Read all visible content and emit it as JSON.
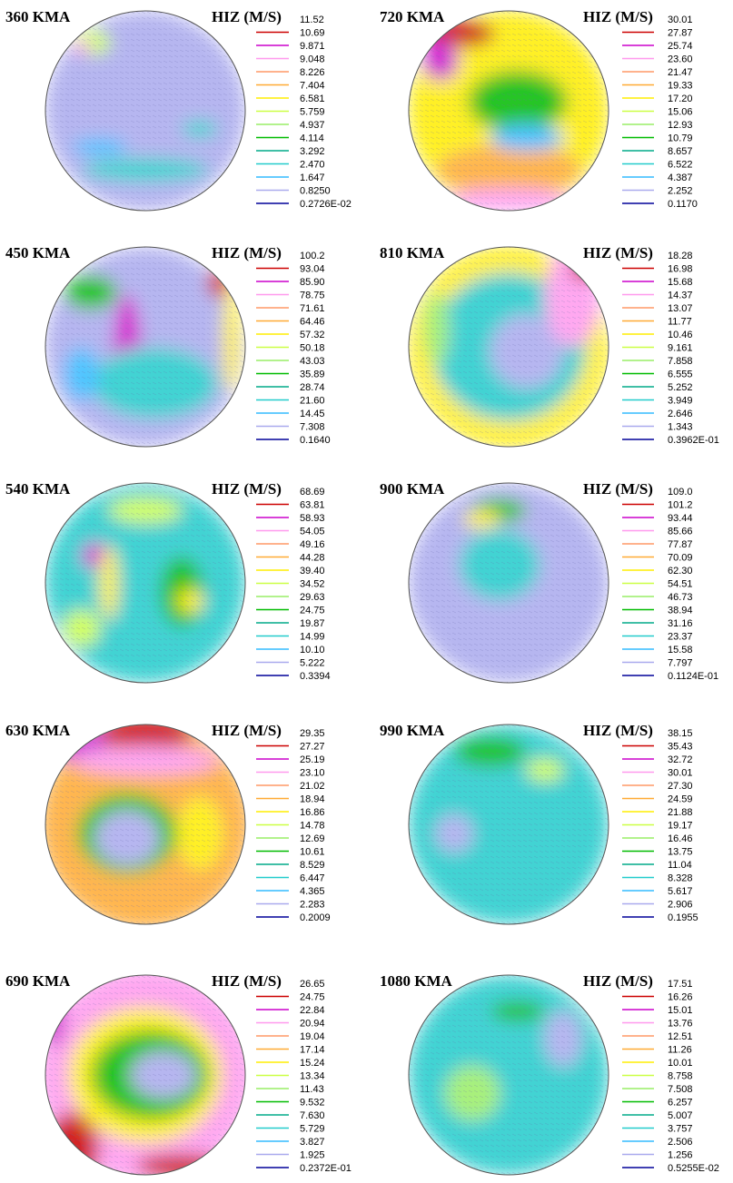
{
  "legend_colors": [
    "#cc0000",
    "#cc00cc",
    "#ff99ee",
    "#ff9966",
    "#ffaa33",
    "#ffee00",
    "#ccff44",
    "#99ee66",
    "#00bb00",
    "#00aa88",
    "#22cccc",
    "#33bbff",
    "#aaaaee",
    "#000099"
  ],
  "panels": [
    {
      "title": "360 KMA",
      "legend_title": "HIZ (M/S)",
      "levels": [
        "11.52",
        "10.69",
        "9.871",
        "9.048",
        "8.226",
        "7.404",
        "6.581",
        "5.759",
        "4.937",
        "4.114",
        "3.292",
        "2.470",
        "1.647",
        "0.8250",
        "0.2726E-02"
      ]
    },
    {
      "title": "720 KMA",
      "legend_title": "HIZ (M/S)",
      "levels": [
        "30.01",
        "27.87",
        "25.74",
        "23.60",
        "21.47",
        "19.33",
        "17.20",
        "15.06",
        "12.93",
        "10.79",
        "8.657",
        "6.522",
        "4.387",
        "2.252",
        "0.1170"
      ]
    },
    {
      "title": "450 KMA",
      "legend_title": "HIZ (M/S)",
      "levels": [
        "100.2",
        "93.04",
        "85.90",
        "78.75",
        "71.61",
        "64.46",
        "57.32",
        "50.18",
        "43.03",
        "35.89",
        "28.74",
        "21.60",
        "14.45",
        "7.308",
        "0.1640"
      ]
    },
    {
      "title": "810 KMA",
      "legend_title": "HIZ (M/S)",
      "levels": [
        "18.28",
        "16.98",
        "15.68",
        "14.37",
        "13.07",
        "11.77",
        "10.46",
        "9.161",
        "7.858",
        "6.555",
        "5.252",
        "3.949",
        "2.646",
        "1.343",
        "0.3962E-01"
      ]
    },
    {
      "title": "540 KMA",
      "legend_title": "HIZ (M/S)",
      "levels": [
        "68.69",
        "63.81",
        "58.93",
        "54.05",
        "49.16",
        "44.28",
        "39.40",
        "34.52",
        "29.63",
        "24.75",
        "19.87",
        "14.99",
        "10.10",
        "5.222",
        "0.3394"
      ]
    },
    {
      "title": "900 KMA",
      "legend_title": "HIZ (M/S)",
      "levels": [
        "109.0",
        "101.2",
        "93.44",
        "85.66",
        "77.87",
        "70.09",
        "62.30",
        "54.51",
        "46.73",
        "38.94",
        "31.16",
        "23.37",
        "15.58",
        "7.797",
        "0.1124E-01"
      ]
    },
    {
      "title": "630 KMA",
      "legend_title": "HIZ (M/S)",
      "levels": [
        "29.35",
        "27.27",
        "25.19",
        "23.10",
        "21.02",
        "18.94",
        "16.86",
        "14.78",
        "12.69",
        "10.61",
        "8.529",
        "6.447",
        "4.365",
        "2.283",
        "0.2009"
      ]
    },
    {
      "title": "990 KMA",
      "legend_title": "HIZ (M/S)",
      "levels": [
        "38.15",
        "35.43",
        "32.72",
        "30.01",
        "27.30",
        "24.59",
        "21.88",
        "19.17",
        "16.46",
        "13.75",
        "11.04",
        "8.328",
        "5.617",
        "2.906",
        "0.1955"
      ]
    },
    {
      "title": "690 KMA",
      "legend_title": "HIZ (M/S)",
      "levels": [
        "26.65",
        "24.75",
        "22.84",
        "20.94",
        "19.04",
        "17.14",
        "15.24",
        "13.34",
        "11.43",
        "9.532",
        "7.630",
        "5.729",
        "3.827",
        "1.925",
        "0.2372E-01"
      ]
    },
    {
      "title": "1080 KMA",
      "legend_title": "HIZ (M/S)",
      "levels": [
        "17.51",
        "16.26",
        "15.01",
        "13.76",
        "12.51",
        "11.26",
        "10.01",
        "8.758",
        "7.508",
        "6.257",
        "5.007",
        "3.757",
        "2.506",
        "1.256",
        "0.5255E-02"
      ]
    }
  ]
}
